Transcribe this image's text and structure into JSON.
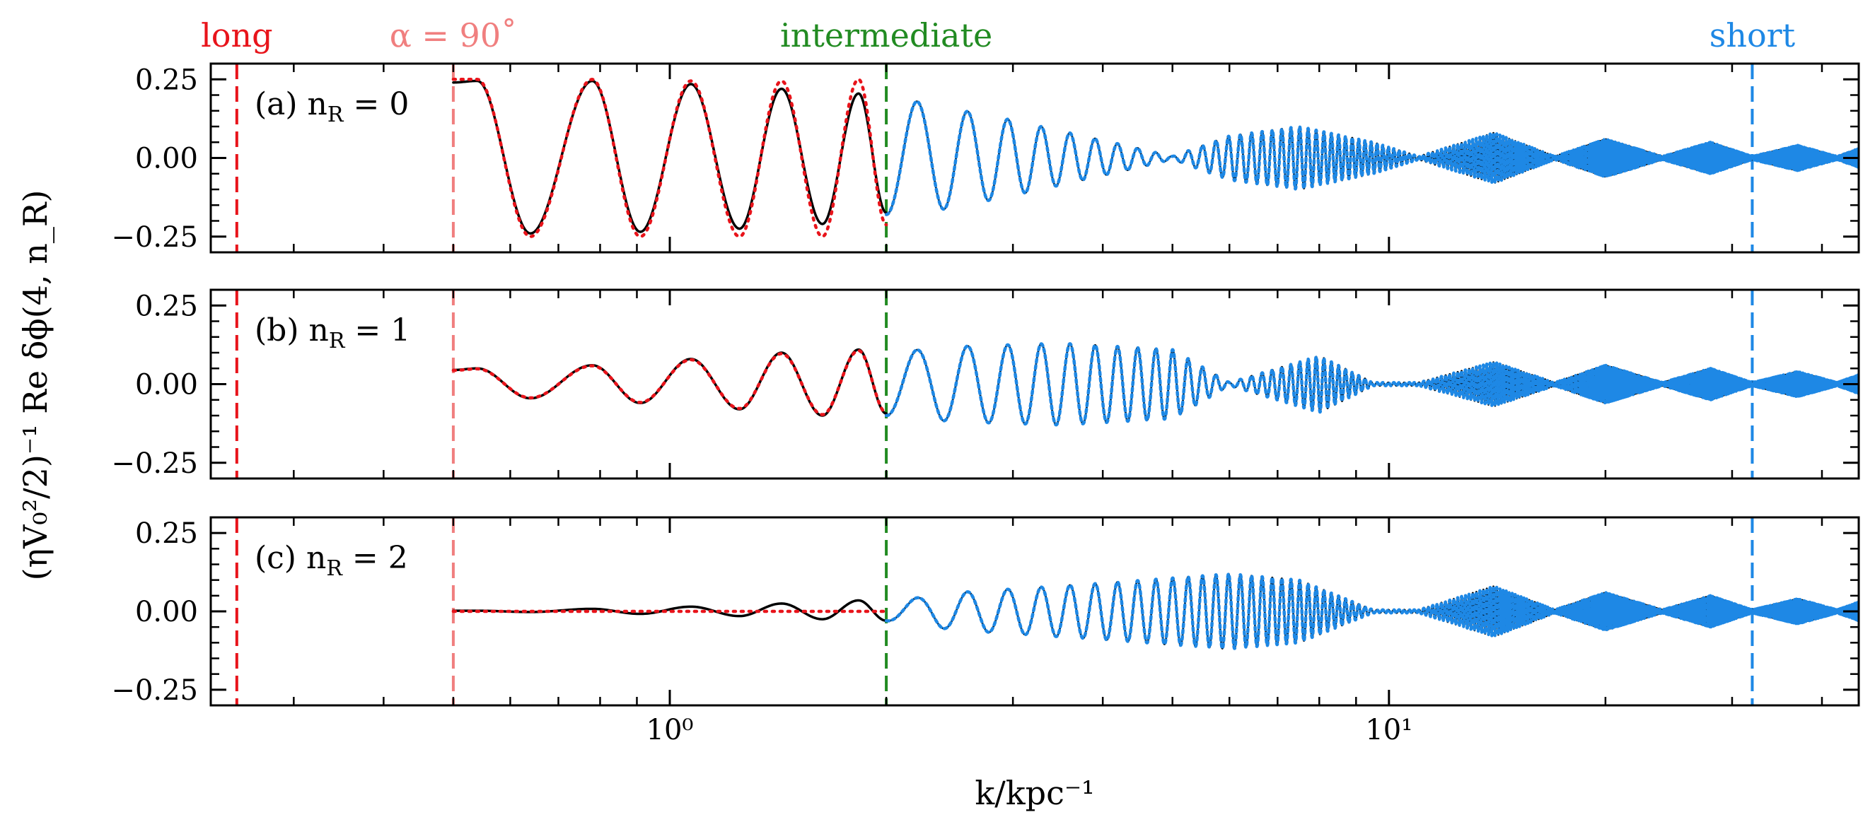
{
  "chart_data": {
    "type": "line",
    "xscale": "log",
    "xlim": [
      0.23,
      45
    ],
    "xlabel": "k/kpc⁻¹",
    "ylabel": "(ηV₀²/2)⁻¹ Re δϕ(4, n_R)",
    "xticks": [
      1,
      10
    ],
    "xtick_labels": [
      "10⁰",
      "10¹"
    ],
    "yticks": [
      -0.25,
      0,
      0.25
    ],
    "ytick_labels": [
      "−0.25",
      "0.00",
      "0.25"
    ],
    "ylim": [
      -0.3,
      0.3
    ],
    "grid": false,
    "vertical_lines": [
      {
        "x": 0.25,
        "label": "long",
        "color": "#e8141b"
      },
      {
        "x": 0.5,
        "label": "α = 90˚",
        "color": "#f07f7f"
      },
      {
        "x": 2.0,
        "label": "intermediate",
        "color": "#228b22"
      },
      {
        "x": 32.0,
        "label": "short",
        "color": "#1e88e5"
      }
    ],
    "panels": [
      {
        "label": "(a) n_R = 0",
        "series": [
          {
            "style": "solid-black",
            "x_range": [
              0.5,
              2.0
            ],
            "peaks_x": [
              0.54,
              0.78,
              1.07,
              1.43,
              1.83
            ],
            "peaks_y": [
              0.245,
              0.245,
              0.235,
              0.22,
              0.205
            ],
            "troughs_x": [
              0.64,
              0.91,
              1.25,
              1.63
            ],
            "troughs_y": [
              -0.24,
              -0.235,
              -0.225,
              -0.21
            ]
          },
          {
            "style": "dotted-red",
            "x_range": [
              0.5,
              2.0
            ],
            "peaks_x": [
              0.54,
              0.78,
              1.07,
              1.43,
              1.83
            ],
            "peaks_y": [
              0.25,
              0.25,
              0.245,
              0.245,
              0.25
            ],
            "troughs_x": [
              0.64,
              0.91,
              1.25,
              1.63
            ],
            "troughs_y": [
              -0.25,
              -0.25,
              -0.25,
              -0.25
            ]
          },
          {
            "style": "solid-black",
            "x_range": [
              2.0,
              45
            ],
            "envelope_x": [
              2.0,
              2.2,
              3.0,
              4.5,
              5.0,
              6.0,
              7.5,
              9.5,
              11,
              14,
              17,
              20,
              24,
              28,
              32,
              37,
              42,
              45
            ],
            "envelope_y": [
              0.18,
              0.18,
              0.12,
              0.03,
              0.005,
              0.07,
              0.1,
              0.05,
              0.005,
              0.08,
              0.005,
              0.06,
              0.005,
              0.05,
              0.005,
              0.04,
              0.005,
              0.03
            ]
          },
          {
            "style": "dotted-blue",
            "x_range": [
              2.0,
              45
            ]
          }
        ]
      },
      {
        "label": "(b) n_R = 1",
        "series": [
          {
            "style": "solid-black",
            "x_range": [
              0.5,
              2.0
            ],
            "peaks_x": [
              0.54,
              0.78,
              1.07,
              1.43,
              1.83
            ],
            "peaks_y": [
              0.05,
              0.06,
              0.08,
              0.1,
              0.11
            ],
            "troughs_x": [
              0.64,
              0.91,
              1.25,
              1.63
            ],
            "troughs_y": [
              -0.045,
              -0.06,
              -0.08,
              -0.1
            ]
          },
          {
            "style": "dotted-red",
            "x_range": [
              0.5,
              2.0
            ]
          },
          {
            "style": "solid-black",
            "x_range": [
              2.0,
              45
            ],
            "envelope_x": [
              2.0,
              2.5,
              3.5,
              5.0,
              6.0,
              8.0,
              9.5,
              11,
              14,
              17,
              20,
              24,
              28,
              32,
              37,
              42,
              45
            ],
            "envelope_y": [
              0.1,
              0.12,
              0.13,
              0.11,
              0.005,
              0.09,
              0.005,
              0.005,
              0.07,
              0.005,
              0.06,
              0.005,
              0.05,
              0.005,
              0.04,
              0.005,
              0.03
            ]
          },
          {
            "style": "dotted-blue",
            "x_range": [
              2.0,
              45
            ]
          }
        ]
      },
      {
        "label": "(c) n_R = 2",
        "series": [
          {
            "style": "solid-black",
            "x_range": [
              0.5,
              2.0
            ],
            "peaks_x": [
              0.54,
              0.78,
              1.07,
              1.43,
              1.83
            ],
            "peaks_y": [
              0.002,
              0.008,
              0.015,
              0.025,
              0.035
            ],
            "troughs_x": [
              0.64,
              0.91,
              1.25,
              1.63
            ],
            "troughs_y": [
              -0.002,
              -0.008,
              -0.015,
              -0.025
            ]
          },
          {
            "style": "dotted-red",
            "x_range": [
              0.5,
              2.0
            ],
            "constant_y": 0.0
          },
          {
            "style": "solid-black",
            "x_range": [
              2.0,
              45
            ],
            "envelope_x": [
              2.0,
              2.5,
              4.0,
              6.0,
              7.5,
              9.5,
              11,
              14,
              17,
              20,
              24,
              28,
              32,
              37,
              42,
              45
            ],
            "envelope_y": [
              0.03,
              0.06,
              0.09,
              0.12,
              0.1,
              0.005,
              0.005,
              0.08,
              0.005,
              0.06,
              0.005,
              0.05,
              0.005,
              0.04,
              0.005,
              0.03
            ]
          },
          {
            "style": "dotted-blue",
            "x_range": [
              2.0,
              45
            ]
          }
        ]
      }
    ]
  }
}
